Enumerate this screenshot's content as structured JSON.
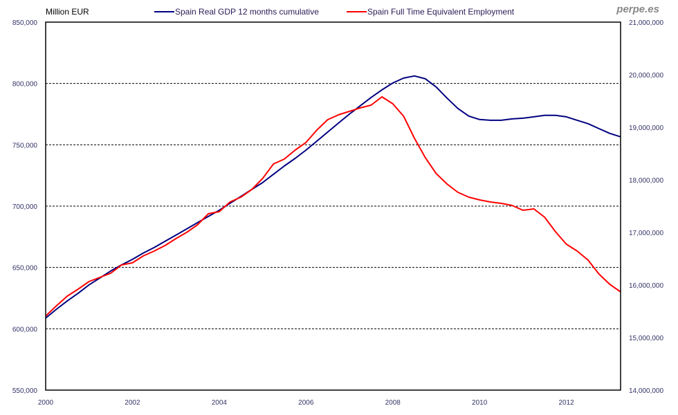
{
  "chart_data": {
    "type": "line",
    "title": "",
    "brand": "perpe.es",
    "ylabel_left": "Million EUR",
    "ylabel_right": "",
    "xlabel": "",
    "x_start": 2000.0,
    "x_step": 0.25,
    "x_ticks": [
      "2000",
      "2002",
      "2004",
      "2006",
      "2008",
      "2010",
      "2012"
    ],
    "x_tick_values": [
      2000,
      2002,
      2004,
      2006,
      2008,
      2010,
      2012
    ],
    "xlim": [
      2000,
      2013.25
    ],
    "ylim_left": [
      550000,
      850000
    ],
    "ylim_right": [
      14000000,
      21000000
    ],
    "y_ticks_left": [
      "550,000",
      "600,000",
      "650,000",
      "700,000",
      "750,000",
      "800,000",
      "850,000"
    ],
    "y_tick_values_left": [
      550000,
      600000,
      650000,
      700000,
      750000,
      800000,
      850000
    ],
    "y_ticks_right": [
      "14,000,000",
      "15,000,000",
      "16,000,000",
      "17,000,000",
      "18,000,000",
      "19,000,000",
      "20,000,000",
      "21,000,000"
    ],
    "y_tick_values_right": [
      14000000,
      15000000,
      16000000,
      17000000,
      18000000,
      19000000,
      20000000,
      21000000
    ],
    "grid": "horizontal dashed",
    "legend_position": "top",
    "series": [
      {
        "name": "Spain Real GDP 12 months cumulative",
        "axis": "left",
        "color": "#000080",
        "values": [
          608700,
          616000,
          622800,
          629000,
          635800,
          641400,
          647100,
          652100,
          656600,
          661700,
          666200,
          671300,
          676300,
          681400,
          686500,
          691600,
          696600,
          702300,
          707900,
          713600,
          719200,
          726000,
          732700,
          738900,
          745700,
          753000,
          760400,
          767700,
          775000,
          781800,
          788600,
          794800,
          800400,
          804400,
          806100,
          803800,
          797100,
          788100,
          779600,
          773400,
          770600,
          770000,
          770000,
          771100,
          771700,
          772800,
          774000,
          774000,
          772800,
          770000,
          767200,
          763200,
          759300,
          756500
        ]
      },
      {
        "name": "Spain Full Time Equivalent Employment",
        "axis": "right",
        "color": "#ff0000",
        "values": [
          15408000,
          15605000,
          15789000,
          15921000,
          16066000,
          16145000,
          16224000,
          16382000,
          16421000,
          16553000,
          16645000,
          16750000,
          16882000,
          17000000,
          17145000,
          17355000,
          17395000,
          17579000,
          17671000,
          17816000,
          18026000,
          18303000,
          18395000,
          18566000,
          18711000,
          18947000,
          19145000,
          19237000,
          19303000,
          19368000,
          19421000,
          19579000,
          19447000,
          19211000,
          18789000,
          18421000,
          18118000,
          17921000,
          17763000,
          17671000,
          17618000,
          17579000,
          17553000,
          17513000,
          17421000,
          17447000,
          17289000,
          17013000,
          16776000,
          16645000,
          16474000,
          16211000,
          16013000,
          15868000
        ]
      }
    ]
  }
}
